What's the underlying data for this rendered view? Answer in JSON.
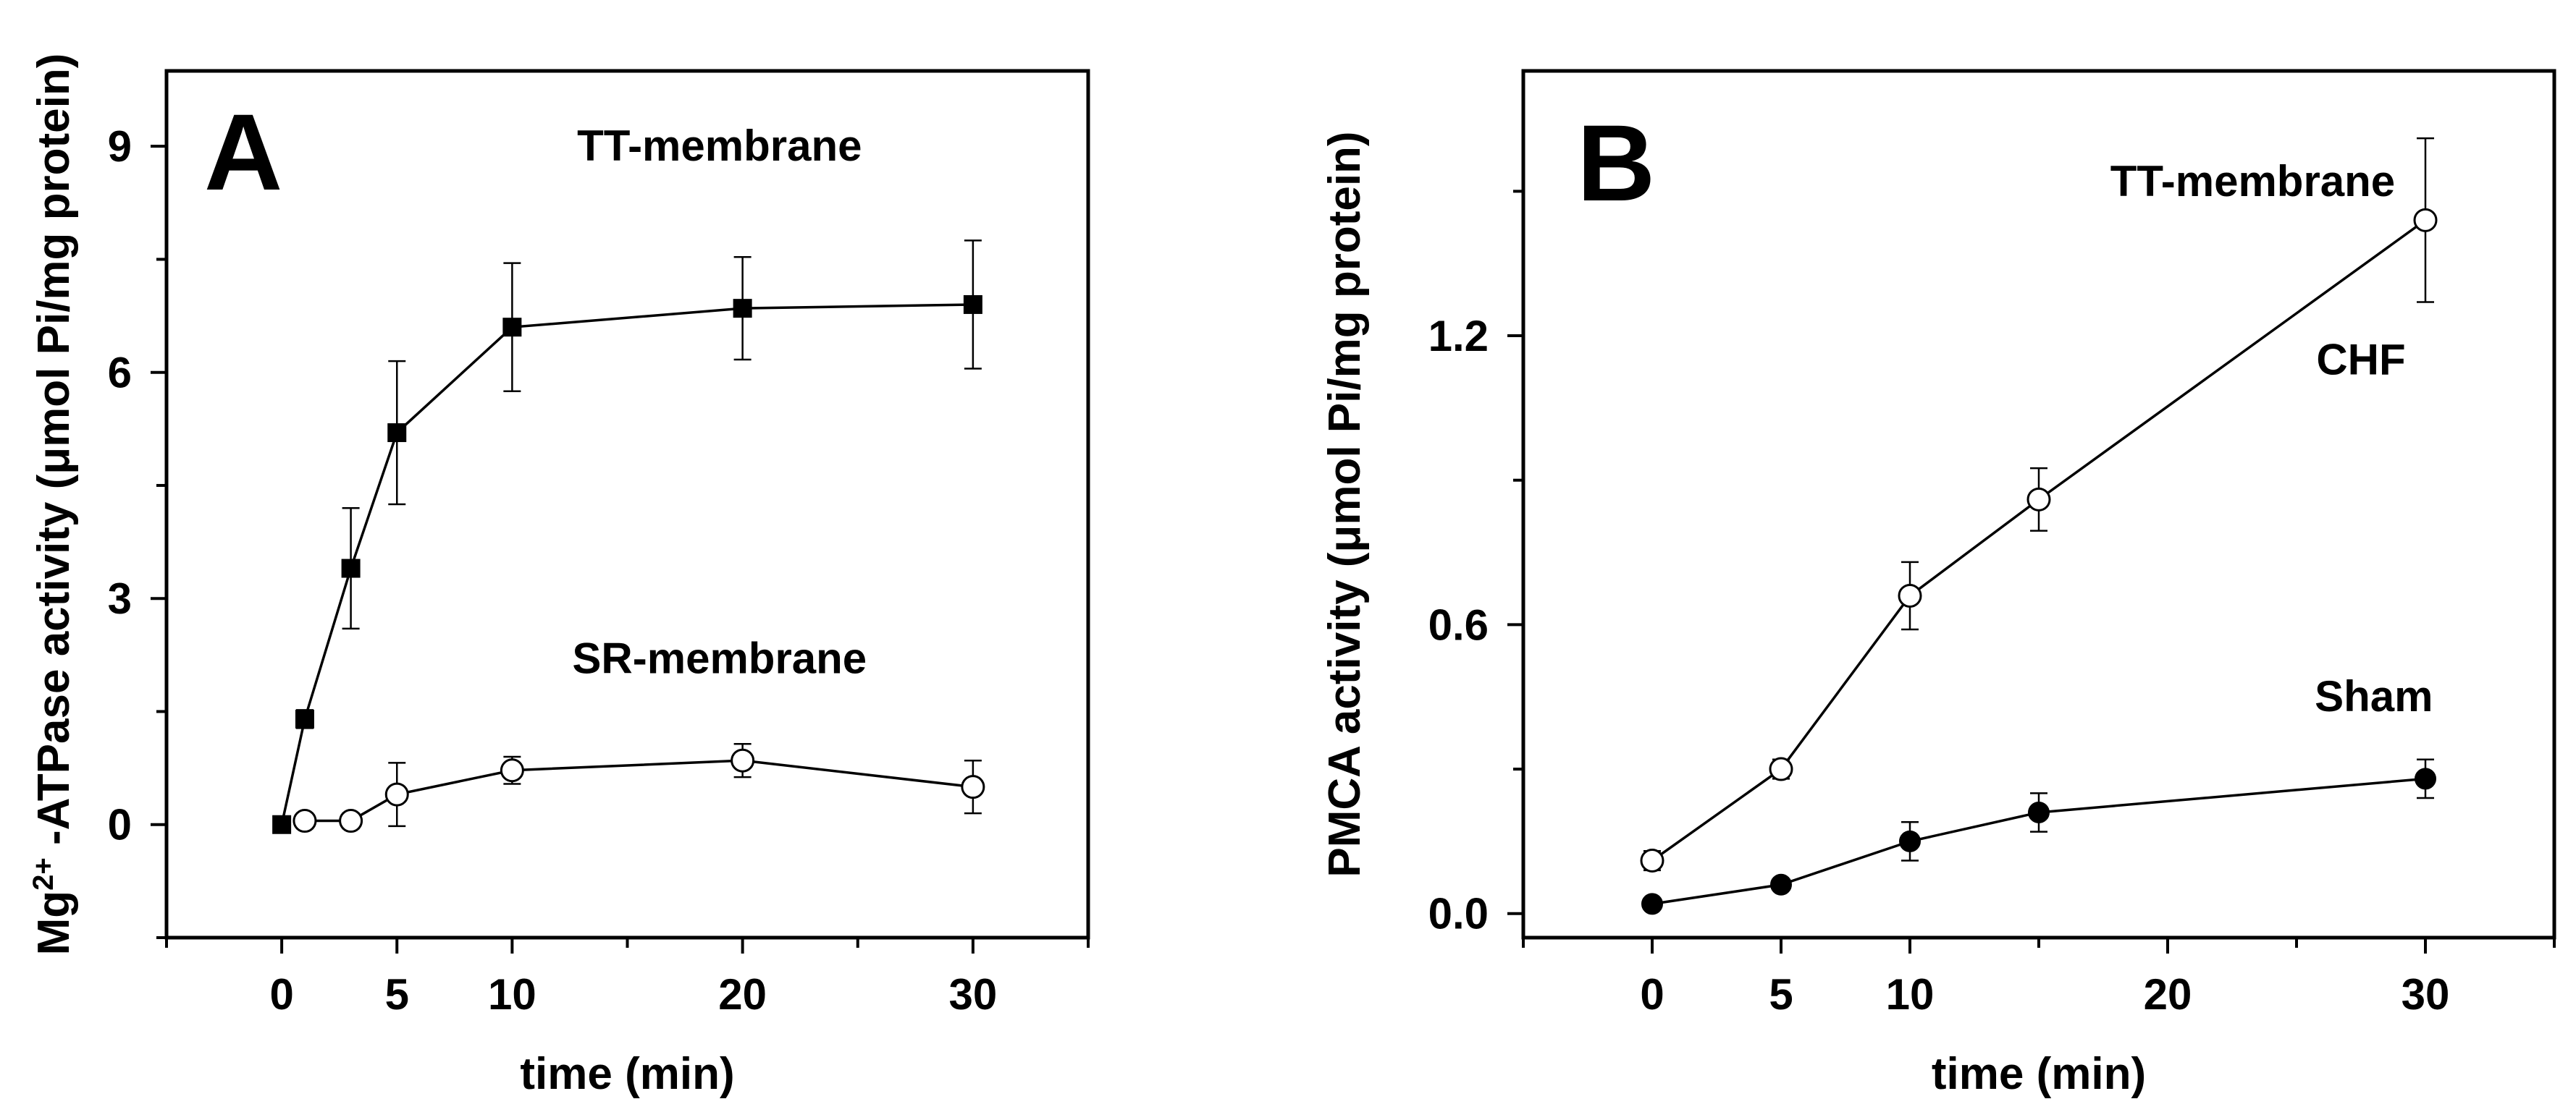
{
  "chart_data": [
    {
      "type": "line",
      "panel_label": "A",
      "xlabel": "time (min)",
      "ylabel_prefix": "Mg",
      "ylabel_sup": "2+",
      "ylabel_rest": " -ATPase activity (μmol Pi/mg protein)",
      "xlim": [
        -5,
        35
      ],
      "ylim": [
        -1.5,
        10
      ],
      "xticks": [
        0,
        5,
        10,
        20,
        30
      ],
      "xtick_labels": [
        "0",
        "5",
        "10",
        "20",
        "30"
      ],
      "minor_xticks": [
        -5,
        15,
        25,
        35
      ],
      "yticks": [
        0,
        3,
        6,
        9
      ],
      "ytick_labels": [
        "0",
        "3",
        "6",
        "9"
      ],
      "minor_yticks": [
        -1.5,
        1.5,
        4.5,
        7.5
      ],
      "series": [
        {
          "name": "TT-membrane",
          "marker": "square-filled",
          "x": [
            0,
            1,
            3,
            5,
            10,
            20,
            30
          ],
          "values": [
            0.0,
            1.4,
            3.4,
            5.2,
            6.6,
            6.85,
            6.9
          ],
          "errors": [
            0.0,
            0.12,
            0.8,
            0.95,
            0.85,
            0.68,
            0.85
          ],
          "label_anchor": [
            19,
            9.0
          ]
        },
        {
          "name": "SR-membrane",
          "marker": "circle-open",
          "x": [
            1,
            3,
            5,
            10,
            20,
            30
          ],
          "values": [
            0.05,
            0.05,
            0.4,
            0.72,
            0.85,
            0.5
          ],
          "errors": [
            0.1,
            0.1,
            0.42,
            0.18,
            0.22,
            0.35
          ],
          "label_anchor": [
            19,
            2.2
          ]
        }
      ]
    },
    {
      "type": "line",
      "panel_label": "B",
      "xlabel": "time (min)",
      "ylabel": "PMCA activity (μmol Pi/mg protein)",
      "panel_note": "TT-membrane",
      "xlim": [
        -5,
        35
      ],
      "ylim": [
        -0.05,
        1.75
      ],
      "xticks": [
        0,
        5,
        10,
        20,
        30
      ],
      "xtick_labels": [
        "0",
        "5",
        "10",
        "20",
        "30"
      ],
      "minor_xticks": [
        -5,
        15,
        25,
        35
      ],
      "yticks": [
        0.0,
        0.6,
        1.2
      ],
      "ytick_labels": [
        "0.0",
        "0.6",
        "1.2"
      ],
      "minor_yticks": [
        0.3,
        0.9,
        1.5
      ],
      "series": [
        {
          "name": "CHF",
          "marker": "circle-open",
          "x": [
            0,
            5,
            10,
            15,
            30
          ],
          "values": [
            0.11,
            0.3,
            0.66,
            0.86,
            1.44
          ],
          "errors": [
            0.02,
            0.02,
            0.07,
            0.065,
            0.17
          ],
          "label_anchor": [
            27.5,
            1.15
          ]
        },
        {
          "name": "Sham",
          "marker": "circle-filled",
          "x": [
            0,
            5,
            10,
            15,
            30
          ],
          "values": [
            0.02,
            0.06,
            0.15,
            0.21,
            0.28
          ],
          "errors": [
            0.0,
            0.0,
            0.04,
            0.04,
            0.04
          ],
          "label_anchor": [
            28,
            0.45
          ]
        }
      ]
    }
  ]
}
